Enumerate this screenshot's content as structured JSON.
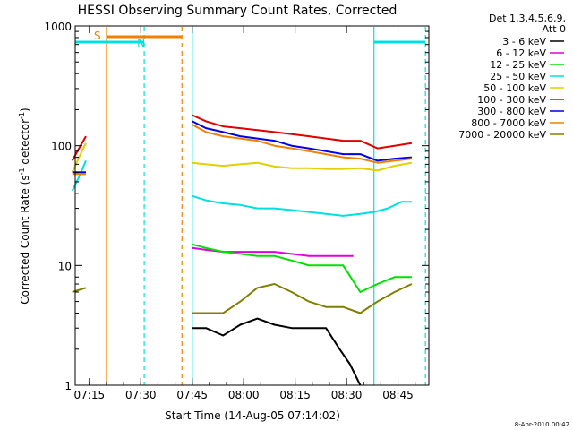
{
  "chart_data": {
    "type": "line",
    "title": "HESSI Observing Summary Count Rates, Corrected",
    "xlabel": "Start Time (14-Aug-05 07:14:02)",
    "ylabel_main": "Corrected Count Rate (s",
    "ylabel_sup1": "-1",
    "ylabel_mid": " detector",
    "ylabel_sup2": "-1",
    "ylabel_end": ")",
    "x_unit": "minutes after 07:14:02 (approx.)",
    "xlim": [
      0,
      100
    ],
    "ylim": [
      1,
      1000
    ],
    "y_scale": "log",
    "x_ticks": [
      {
        "t": 1,
        "label": "07:15"
      },
      {
        "t": 16,
        "label": "07:30"
      },
      {
        "t": 31,
        "label": "07:45"
      },
      {
        "t": 46,
        "label": "08:00"
      },
      {
        "t": 61,
        "label": "08:15"
      },
      {
        "t": 76,
        "label": "08:30"
      },
      {
        "t": 91,
        "label": "08:45"
      }
    ],
    "y_ticks": [
      {
        "v": 1,
        "label": "1"
      },
      {
        "v": 10,
        "label": "10"
      },
      {
        "v": 100,
        "label": "100"
      },
      {
        "v": 1000,
        "label": "1000"
      }
    ],
    "legend_header": "Det 1,3,4,5,6,9,",
    "legend_header2": "Att 0",
    "legend_position": "right",
    "series": [
      {
        "name": "3 - 6 keV",
        "color": "#000000",
        "points": [
          [
            31,
            3
          ],
          [
            35,
            3
          ],
          [
            40,
            2.6
          ],
          [
            45,
            3.2
          ],
          [
            50,
            3.6
          ],
          [
            55,
            3.2
          ],
          [
            60,
            3
          ],
          [
            65,
            3
          ],
          [
            70,
            3
          ],
          [
            74,
            2
          ],
          [
            77,
            1.5
          ],
          [
            80,
            1
          ]
        ]
      },
      {
        "name": "6 - 12 keV",
        "color": "#e000e0",
        "points": [
          [
            31,
            14
          ],
          [
            35,
            13.5
          ],
          [
            40,
            13
          ],
          [
            45,
            13
          ],
          [
            50,
            13
          ],
          [
            55,
            13
          ],
          [
            60,
            12.5
          ],
          [
            65,
            12
          ],
          [
            70,
            12
          ],
          [
            75,
            12
          ],
          [
            78,
            12
          ]
        ]
      },
      {
        "name": "12 - 25 keV",
        "color": "#00e000",
        "points": [
          [
            31,
            15
          ],
          [
            35,
            14
          ],
          [
            40,
            13
          ],
          [
            45,
            12.5
          ],
          [
            50,
            12
          ],
          [
            55,
            12
          ],
          [
            60,
            11
          ],
          [
            65,
            10
          ],
          [
            70,
            10
          ],
          [
            75,
            10
          ],
          [
            80,
            6
          ],
          [
            85,
            7
          ],
          [
            90,
            8
          ],
          [
            95,
            8
          ]
        ]
      },
      {
        "name": "25 - 50 keV",
        "color": "#00e0e0",
        "points": [
          [
            -4,
            42
          ],
          [
            -2,
            55
          ],
          [
            0,
            75
          ],
          [
            31,
            38
          ],
          [
            35,
            35
          ],
          [
            40,
            33
          ],
          [
            45,
            32
          ],
          [
            50,
            30
          ],
          [
            55,
            30
          ],
          [
            60,
            29
          ],
          [
            65,
            28
          ],
          [
            70,
            27
          ],
          [
            75,
            26
          ],
          [
            80,
            27
          ],
          [
            84,
            28
          ],
          [
            88,
            30
          ],
          [
            92,
            34
          ],
          [
            95,
            34
          ]
        ]
      },
      {
        "name": "50 - 100 keV",
        "color": "#e0d000",
        "points": [
          [
            -4,
            60
          ],
          [
            -2,
            80
          ],
          [
            0,
            105
          ],
          [
            31,
            72
          ],
          [
            35,
            70
          ],
          [
            40,
            68
          ],
          [
            45,
            70
          ],
          [
            50,
            72
          ],
          [
            55,
            67
          ],
          [
            60,
            65
          ],
          [
            65,
            65
          ],
          [
            70,
            64
          ],
          [
            75,
            64
          ],
          [
            80,
            65
          ],
          [
            85,
            62
          ],
          [
            90,
            68
          ],
          [
            95,
            72
          ]
        ]
      },
      {
        "name": "100 - 300 keV",
        "color": "#e00000",
        "points": [
          [
            -4,
            75
          ],
          [
            -2,
            95
          ],
          [
            0,
            120
          ],
          [
            31,
            180
          ],
          [
            35,
            160
          ],
          [
            40,
            145
          ],
          [
            45,
            140
          ],
          [
            50,
            135
          ],
          [
            55,
            130
          ],
          [
            60,
            125
          ],
          [
            65,
            120
          ],
          [
            70,
            115
          ],
          [
            75,
            110
          ],
          [
            80,
            110
          ],
          [
            85,
            95
          ],
          [
            90,
            100
          ],
          [
            95,
            105
          ]
        ]
      },
      {
        "name": "300 - 800 keV",
        "color": "#0000e0",
        "points": [
          [
            -4,
            60
          ],
          [
            0,
            60
          ],
          [
            31,
            160
          ],
          [
            35,
            140
          ],
          [
            40,
            130
          ],
          [
            45,
            120
          ],
          [
            50,
            115
          ],
          [
            55,
            110
          ],
          [
            60,
            100
          ],
          [
            65,
            95
          ],
          [
            70,
            90
          ],
          [
            75,
            85
          ],
          [
            80,
            85
          ],
          [
            85,
            75
          ],
          [
            90,
            78
          ],
          [
            95,
            80
          ]
        ]
      },
      {
        "name": "800 - 7000 keV",
        "color": "#f08000",
        "points": [
          [
            -4,
            58
          ],
          [
            0,
            58
          ],
          [
            31,
            150
          ],
          [
            35,
            130
          ],
          [
            40,
            120
          ],
          [
            45,
            115
          ],
          [
            50,
            110
          ],
          [
            55,
            100
          ],
          [
            60,
            95
          ],
          [
            65,
            90
          ],
          [
            70,
            85
          ],
          [
            75,
            80
          ],
          [
            80,
            78
          ],
          [
            85,
            72
          ],
          [
            90,
            75
          ],
          [
            95,
            78
          ]
        ]
      },
      {
        "name": "7000 - 20000 keV",
        "color": "#808000",
        "points": [
          [
            -4,
            6
          ],
          [
            0,
            6.5
          ],
          [
            31,
            4
          ],
          [
            35,
            4
          ],
          [
            40,
            4
          ],
          [
            45,
            5
          ],
          [
            50,
            6.5
          ],
          [
            55,
            7
          ],
          [
            60,
            6
          ],
          [
            65,
            5
          ],
          [
            70,
            4.5
          ],
          [
            75,
            4.5
          ],
          [
            80,
            4
          ],
          [
            85,
            5
          ],
          [
            90,
            6
          ],
          [
            95,
            7
          ]
        ]
      }
    ],
    "annotations": {
      "saa_label": "S",
      "night_label": "N",
      "stamp": "8-Apr-2010 00:42"
    }
  }
}
